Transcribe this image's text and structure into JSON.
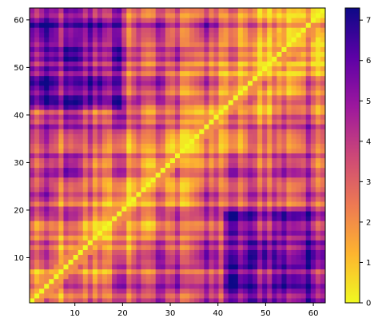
{
  "chart_data": {
    "type": "heatmap",
    "title": "",
    "xlabel": "",
    "ylabel": "",
    "xlim": [
      1,
      62
    ],
    "ylim": [
      1,
      62
    ],
    "x_ticks": [
      "10",
      "20",
      "30",
      "40",
      "50",
      "60"
    ],
    "y_ticks": [
      "10",
      "20",
      "30",
      "40",
      "50",
      "60"
    ],
    "colorbar": {
      "colormap": "plasma (reversed)",
      "range": [
        0,
        7.3
      ],
      "ticks": [
        "0",
        "1",
        "2",
        "3",
        "4",
        "5",
        "6",
        "7"
      ],
      "stops": [
        "#f0f921",
        "#fdb42f",
        "#ed7953",
        "#cc4778",
        "#9c179e",
        "#5c01a6",
        "#0d0887"
      ]
    },
    "grid_size": 61,
    "diagonal_value": 0,
    "matrix_description_values": {
      "low_band_near_diagonal": 1.5,
      "upper_left_region_peak": 6.5,
      "lower_right_region_peak": 7.0,
      "typical_off_diagonal": 3.5
    },
    "grid": false,
    "legend": "colorbar right"
  }
}
